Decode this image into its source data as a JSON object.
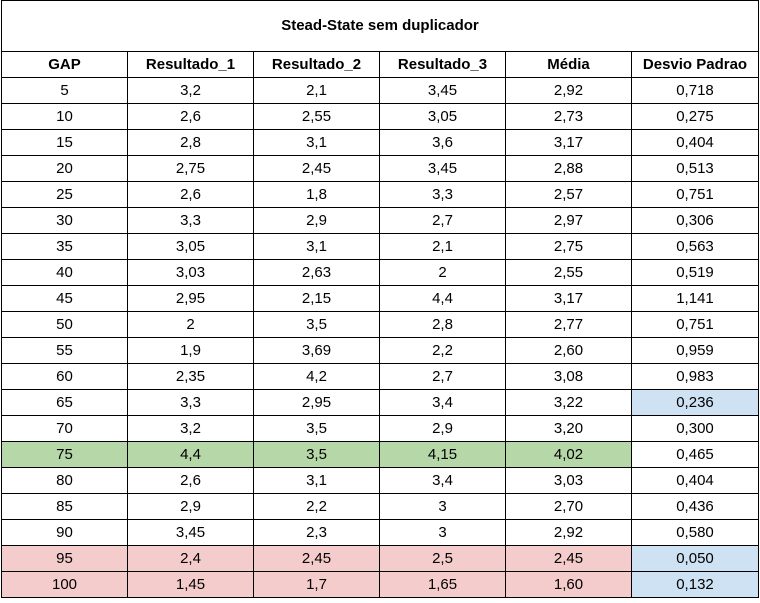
{
  "title": "Stead-State sem duplicador",
  "headers": [
    "GAP",
    "Resultado_1",
    "Resultado_2",
    "Resultado_3",
    "Média",
    "Desvio Padrao"
  ],
  "rows": [
    {
      "cells": [
        "5",
        "3,2",
        "2,1",
        "3,45",
        "2,92",
        "0,718"
      ],
      "highlight": "none",
      "std_highlight": "none"
    },
    {
      "cells": [
        "10",
        "2,6",
        "2,55",
        "3,05",
        "2,73",
        "0,275"
      ],
      "highlight": "none",
      "std_highlight": "none"
    },
    {
      "cells": [
        "15",
        "2,8",
        "3,1",
        "3,6",
        "3,17",
        "0,404"
      ],
      "highlight": "none",
      "std_highlight": "none"
    },
    {
      "cells": [
        "20",
        "2,75",
        "2,45",
        "3,45",
        "2,88",
        "0,513"
      ],
      "highlight": "none",
      "std_highlight": "none"
    },
    {
      "cells": [
        "25",
        "2,6",
        "1,8",
        "3,3",
        "2,57",
        "0,751"
      ],
      "highlight": "none",
      "std_highlight": "none"
    },
    {
      "cells": [
        "30",
        "3,3",
        "2,9",
        "2,7",
        "2,97",
        "0,306"
      ],
      "highlight": "none",
      "std_highlight": "none"
    },
    {
      "cells": [
        "35",
        "3,05",
        "3,1",
        "2,1",
        "2,75",
        "0,563"
      ],
      "highlight": "none",
      "std_highlight": "none"
    },
    {
      "cells": [
        "40",
        "3,03",
        "2,63",
        "2",
        "2,55",
        "0,519"
      ],
      "highlight": "none",
      "std_highlight": "none"
    },
    {
      "cells": [
        "45",
        "2,95",
        "2,15",
        "4,4",
        "3,17",
        "1,141"
      ],
      "highlight": "none",
      "std_highlight": "none"
    },
    {
      "cells": [
        "50",
        "2",
        "3,5",
        "2,8",
        "2,77",
        "0,751"
      ],
      "highlight": "none",
      "std_highlight": "none"
    },
    {
      "cells": [
        "55",
        "1,9",
        "3,69",
        "2,2",
        "2,60",
        "0,959"
      ],
      "highlight": "none",
      "std_highlight": "none"
    },
    {
      "cells": [
        "60",
        "2,35",
        "4,2",
        "2,7",
        "3,08",
        "0,983"
      ],
      "highlight": "none",
      "std_highlight": "none"
    },
    {
      "cells": [
        "65",
        "3,3",
        "2,95",
        "3,4",
        "3,22",
        "0,236"
      ],
      "highlight": "none",
      "std_highlight": "blue"
    },
    {
      "cells": [
        "70",
        "3,2",
        "3,5",
        "2,9",
        "3,20",
        "0,300"
      ],
      "highlight": "none",
      "std_highlight": "none"
    },
    {
      "cells": [
        "75",
        "4,4",
        "3,5",
        "4,15",
        "4,02",
        "0,465"
      ],
      "highlight": "green",
      "std_highlight": "none"
    },
    {
      "cells": [
        "80",
        "2,6",
        "3,1",
        "3,4",
        "3,03",
        "0,404"
      ],
      "highlight": "none",
      "std_highlight": "none"
    },
    {
      "cells": [
        "85",
        "2,9",
        "2,2",
        "3",
        "2,70",
        "0,436"
      ],
      "highlight": "none",
      "std_highlight": "none"
    },
    {
      "cells": [
        "90",
        "3,45",
        "2,3",
        "3",
        "2,92",
        "0,580"
      ],
      "highlight": "none",
      "std_highlight": "none"
    },
    {
      "cells": [
        "95",
        "2,4",
        "2,45",
        "2,5",
        "2,45",
        "0,050"
      ],
      "highlight": "red",
      "std_highlight": "blue"
    },
    {
      "cells": [
        "100",
        "1,45",
        "1,7",
        "1,65",
        "1,60",
        "0,132"
      ],
      "highlight": "red",
      "std_highlight": "blue"
    }
  ],
  "colors": {
    "green": "#b6d7a8",
    "red": "#f4cccc",
    "blue": "#cfe2f3"
  }
}
